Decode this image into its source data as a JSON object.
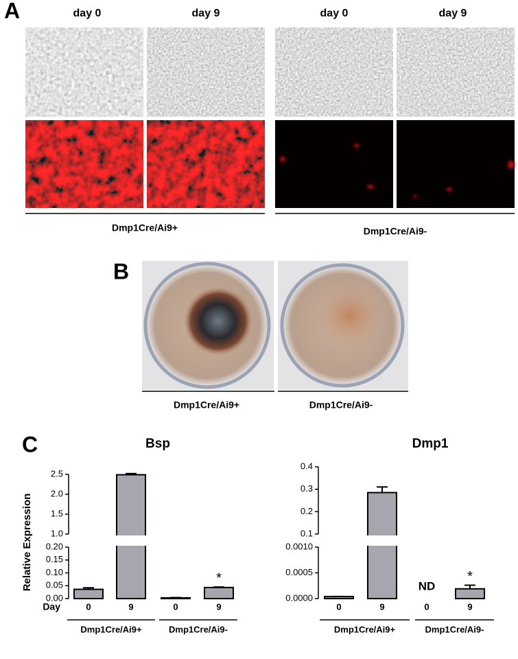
{
  "panels": {
    "A": {
      "label": "A",
      "columns": [
        "day 0",
        "day 9",
        "day 0",
        "day 9"
      ],
      "groups": [
        "Dmp1Cre/Ai9+",
        "Dmp1Cre/Ai9-"
      ]
    },
    "B": {
      "label": "B",
      "groups": [
        "Dmp1Cre/Ai9+",
        "Dmp1Cre/Ai9-"
      ]
    },
    "C": {
      "label": "C"
    }
  },
  "chart_data": [
    {
      "type": "bar",
      "title": "Bsp",
      "y_label": "Relative Expression",
      "x_label": "Day",
      "categories": [
        "0",
        "9",
        "0",
        "9"
      ],
      "groups": [
        "Dmp1Cre/Ai9+",
        "Dmp1Cre/Ai9-"
      ],
      "values": [
        0.036,
        2.49,
        0.003,
        0.043
      ],
      "errors": [
        0.006,
        0.03,
        0.001,
        0.002
      ],
      "significance": [
        null,
        null,
        null,
        "*"
      ],
      "color": "#a6a6ae",
      "ylim": [
        0,
        0.2
      ],
      "yticks": [
        {
          "value": 0,
          "label": "0.00"
        },
        0.05,
        {
          "value": 0.1,
          "label": "0.10"
        },
        0.15,
        {
          "value": 0.2,
          "label": "0.20"
        }
      ],
      "y_break": {
        "ylim": [
          1.0,
          2.5
        ],
        "yticks": [
          {
            "value": 1.0,
            "label": "1.0"
          },
          1.5,
          {
            "value": 2.0,
            "label": "2.0"
          },
          2.5
        ]
      }
    },
    {
      "type": "bar",
      "title": "Dmp1",
      "categories": [
        "0",
        "9",
        "0",
        "9"
      ],
      "groups": [
        "Dmp1Cre/Ai9+",
        "Dmp1Cre/Ai9-"
      ],
      "values": [
        4e-05,
        0.285,
        null,
        0.00019
      ],
      "errors": [
        2e-06,
        0.025,
        null,
        7e-05
      ],
      "value_labels": [
        null,
        null,
        "ND",
        null
      ],
      "significance": [
        null,
        null,
        null,
        "*"
      ],
      "color": "#a6a6ae",
      "ylim": [
        0,
        0.001
      ],
      "yticks": [
        {
          "value": 0,
          "label": "0.0000"
        },
        0.0005,
        {
          "value": 0.001,
          "label": "0.0010"
        }
      ],
      "y_break": {
        "ylim": [
          0.1,
          0.4
        ],
        "yticks": [
          0.1,
          0.2,
          0.3,
          0.4
        ]
      }
    }
  ]
}
